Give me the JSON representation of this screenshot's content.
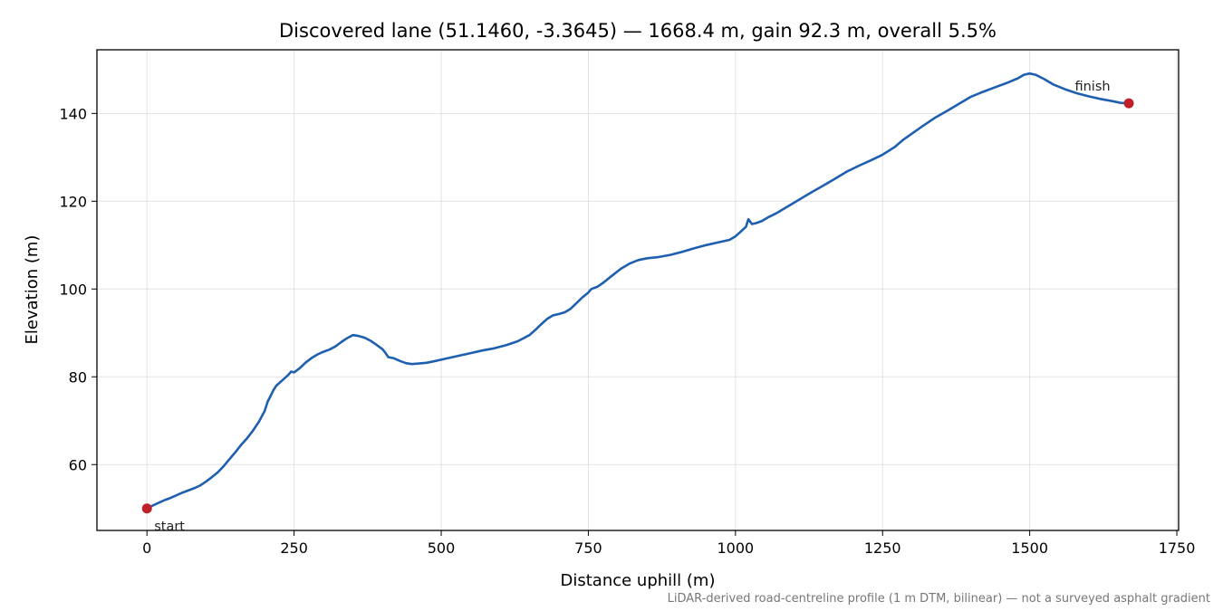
{
  "chart_data": {
    "type": "line",
    "title": "Discovered lane (51.1460, -3.3645) — 1668.4 m, gain 92.3 m, overall 5.5%",
    "xlabel": "Distance uphill (m)",
    "ylabel": "Elevation (m)",
    "xlim": [
      -85,
      1753
    ],
    "ylim": [
      45,
      154.5
    ],
    "xticks": [
      0,
      250,
      500,
      750,
      1000,
      1250,
      1500,
      1750
    ],
    "yticks": [
      60,
      80,
      100,
      120,
      140
    ],
    "grid": true,
    "footnote": "LiDAR-derived road-centreline profile (1 m DTM, bilinear) — not a surveyed asphalt gradient",
    "series": [
      {
        "color": "#1f5fb0",
        "points": [
          [
            0,
            50.0
          ],
          [
            10,
            50.7
          ],
          [
            20,
            51.3
          ],
          [
            30,
            51.9
          ],
          [
            40,
            52.4
          ],
          [
            50,
            53.0
          ],
          [
            60,
            53.6
          ],
          [
            70,
            54.1
          ],
          [
            80,
            54.6
          ],
          [
            90,
            55.2
          ],
          [
            100,
            56.1
          ],
          [
            110,
            57.1
          ],
          [
            120,
            58.2
          ],
          [
            130,
            59.6
          ],
          [
            140,
            61.2
          ],
          [
            150,
            62.8
          ],
          [
            160,
            64.5
          ],
          [
            170,
            66.0
          ],
          [
            180,
            67.7
          ],
          [
            190,
            69.7
          ],
          [
            200,
            72.2
          ],
          [
            205,
            74.3
          ],
          [
            210,
            75.6
          ],
          [
            215,
            77.0
          ],
          [
            220,
            78.0
          ],
          [
            230,
            79.2
          ],
          [
            240,
            80.4
          ],
          [
            245,
            81.2
          ],
          [
            250,
            81.0
          ],
          [
            260,
            82.0
          ],
          [
            270,
            83.3
          ],
          [
            280,
            84.3
          ],
          [
            290,
            85.1
          ],
          [
            300,
            85.7
          ],
          [
            310,
            86.2
          ],
          [
            320,
            86.9
          ],
          [
            330,
            87.9
          ],
          [
            340,
            88.8
          ],
          [
            350,
            89.5
          ],
          [
            360,
            89.3
          ],
          [
            370,
            88.9
          ],
          [
            380,
            88.2
          ],
          [
            390,
            87.3
          ],
          [
            400,
            86.3
          ],
          [
            405,
            85.5
          ],
          [
            410,
            84.5
          ],
          [
            420,
            84.2
          ],
          [
            430,
            83.6
          ],
          [
            440,
            83.1
          ],
          [
            450,
            82.9
          ],
          [
            460,
            83.0
          ],
          [
            475,
            83.2
          ],
          [
            490,
            83.6
          ],
          [
            510,
            84.2
          ],
          [
            530,
            84.8
          ],
          [
            550,
            85.4
          ],
          [
            570,
            86.0
          ],
          [
            590,
            86.5
          ],
          [
            610,
            87.2
          ],
          [
            630,
            88.1
          ],
          [
            650,
            89.5
          ],
          [
            660,
            90.7
          ],
          [
            670,
            92.0
          ],
          [
            680,
            93.2
          ],
          [
            690,
            94.0
          ],
          [
            700,
            94.3
          ],
          [
            710,
            94.7
          ],
          [
            720,
            95.5
          ],
          [
            730,
            96.8
          ],
          [
            740,
            98.1
          ],
          [
            750,
            99.2
          ],
          [
            755,
            100.0
          ],
          [
            765,
            100.5
          ],
          [
            775,
            101.4
          ],
          [
            790,
            103.0
          ],
          [
            805,
            104.6
          ],
          [
            820,
            105.8
          ],
          [
            835,
            106.6
          ],
          [
            850,
            107.0
          ],
          [
            870,
            107.3
          ],
          [
            890,
            107.8
          ],
          [
            910,
            108.5
          ],
          [
            930,
            109.3
          ],
          [
            950,
            110.0
          ],
          [
            970,
            110.6
          ],
          [
            990,
            111.2
          ],
          [
            1000,
            112.0
          ],
          [
            1010,
            113.2
          ],
          [
            1018,
            114.2
          ],
          [
            1022,
            115.9
          ],
          [
            1028,
            114.8
          ],
          [
            1035,
            115.0
          ],
          [
            1045,
            115.5
          ],
          [
            1055,
            116.3
          ],
          [
            1070,
            117.3
          ],
          [
            1090,
            118.9
          ],
          [
            1110,
            120.5
          ],
          [
            1130,
            122.1
          ],
          [
            1150,
            123.6
          ],
          [
            1170,
            125.2
          ],
          [
            1190,
            126.8
          ],
          [
            1210,
            128.1
          ],
          [
            1230,
            129.3
          ],
          [
            1250,
            130.6
          ],
          [
            1270,
            132.3
          ],
          [
            1285,
            134.0
          ],
          [
            1300,
            135.4
          ],
          [
            1320,
            137.3
          ],
          [
            1340,
            139.1
          ],
          [
            1360,
            140.6
          ],
          [
            1380,
            142.2
          ],
          [
            1400,
            143.8
          ],
          [
            1420,
            144.9
          ],
          [
            1440,
            145.9
          ],
          [
            1460,
            146.9
          ],
          [
            1480,
            148.0
          ],
          [
            1490,
            148.8
          ],
          [
            1500,
            149.1
          ],
          [
            1510,
            148.8
          ],
          [
            1525,
            147.8
          ],
          [
            1540,
            146.6
          ],
          [
            1560,
            145.5
          ],
          [
            1580,
            144.6
          ],
          [
            1600,
            143.9
          ],
          [
            1620,
            143.3
          ],
          [
            1640,
            142.8
          ],
          [
            1655,
            142.4
          ],
          [
            1668.4,
            142.3
          ]
        ]
      }
    ],
    "annotations": [
      {
        "label": "start",
        "x": 0,
        "y": 50.0
      },
      {
        "label": "finish",
        "x": 1668.4,
        "y": 142.3
      }
    ],
    "marker_color": "#c0202a"
  }
}
